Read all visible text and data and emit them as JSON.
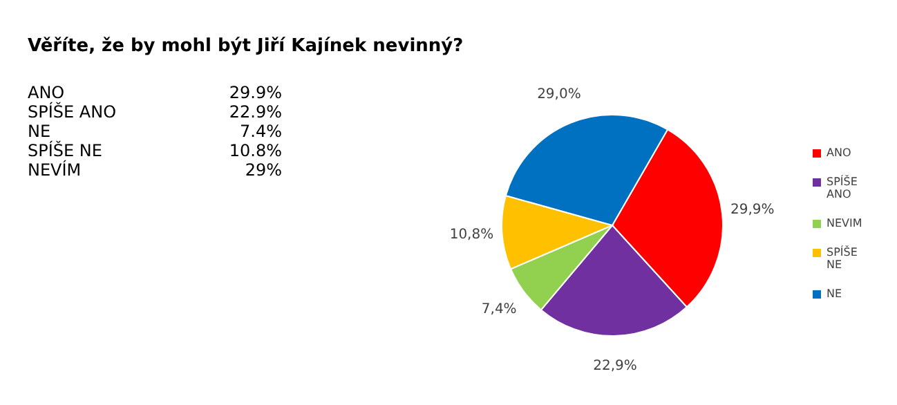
{
  "chart_data": {
    "type": "pie",
    "title": "Věříte, že by mohl být Jiří Kajínek nevinný?",
    "categories": [
      "ANO",
      "SPÍŠE ANO",
      "NEVIM",
      "SPÍŠE NE",
      "NE"
    ],
    "values": [
      29.9,
      22.9,
      7.4,
      10.8,
      29.0
    ],
    "colors": [
      "#ff0000",
      "#7030a0",
      "#92d050",
      "#ffc000",
      "#0070c0"
    ],
    "value_labels": [
      "29,9%",
      "22,9%",
      "7,4%",
      "10,8%",
      "29,0%"
    ],
    "legend": "right",
    "annotations": [
      "ANO",
      "29.9%",
      "SPÍŠE ANO",
      "22.9%",
      "NE",
      "7.4%",
      "SPÍŠE NE",
      "10.8%",
      "NEVÍM",
      "29%"
    ]
  }
}
